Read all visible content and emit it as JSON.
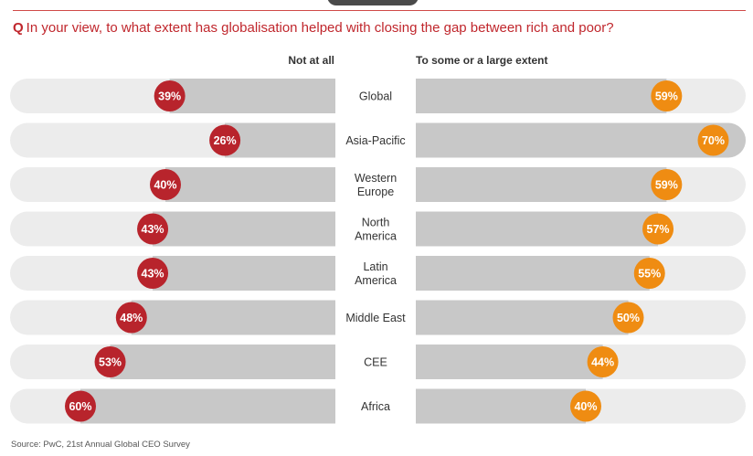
{
  "question": {
    "prefix": "Q",
    "text": "In your view, to what extent has globalisation helped with closing the gap between rich and poor?"
  },
  "colors": {
    "accent": "#c0272d",
    "negative_badge": "#b8242c",
    "positive_badge": "#ef8c12",
    "bar_fill": "#c8c8c8",
    "track_fill": "#ececec"
  },
  "chart_data": {
    "type": "bar",
    "orientation": "horizontal",
    "layout": "diverging",
    "categories": [
      "Global",
      "Asia-Pacific",
      "Western Europe",
      "North America",
      "Latin America",
      "Middle East",
      "CEE",
      "Africa"
    ],
    "series": [
      {
        "name": "Not at all",
        "values": [
          39,
          26,
          40,
          43,
          43,
          48,
          53,
          60
        ]
      },
      {
        "name": "To some or a large extent",
        "values": [
          59,
          70,
          59,
          57,
          55,
          50,
          44,
          40
        ]
      }
    ],
    "value_labels": {
      "left": [
        "39%",
        "26%",
        "40%",
        "43%",
        "43%",
        "48%",
        "53%",
        "60%"
      ],
      "right": [
        "59%",
        "70%",
        "59%",
        "57%",
        "55%",
        "50%",
        "44%",
        "40%"
      ]
    },
    "category_lines": [
      [
        "Global"
      ],
      [
        "Asia-Pacific"
      ],
      [
        "Western",
        "Europe"
      ],
      [
        "North",
        "America"
      ],
      [
        "Latin",
        "America"
      ],
      [
        "Middle East"
      ],
      [
        "CEE"
      ],
      [
        "Africa"
      ]
    ],
    "xlim": [
      0,
      70
    ],
    "unit": "%"
  },
  "source": "Source: PwC, 21st Annual Global CEO Survey"
}
